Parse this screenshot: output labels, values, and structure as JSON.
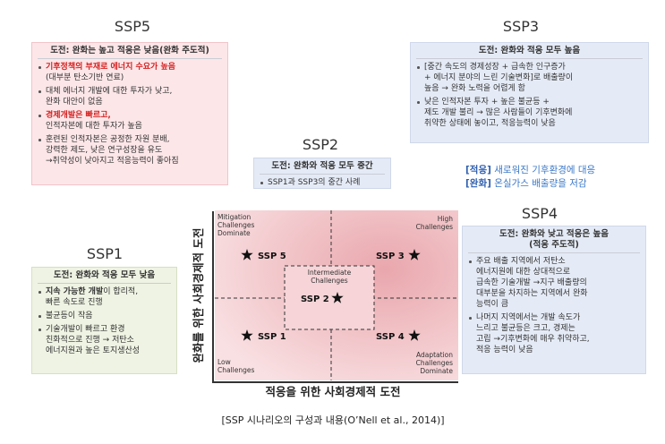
{
  "boxes": [
    {
      "title": "SSP5",
      "header": [
        "도전: 완화는 높고 적응은 낮음(완화 주도적)"
      ],
      "bullets": [
        [
          [
            {
              "text": "기후정책의 부재로 에너지 수요가 높음",
              "emphasis": "red"
            }
          ],
          [
            {
              "text": "(대부분 탄소기반 연료)"
            }
          ]
        ],
        [
          [
            {
              "text": "대체 에너지 개발에 대한 투자가 낮고,"
            }
          ],
          [
            {
              "text": "완화 대안이 없음"
            }
          ]
        ],
        [
          [
            {
              "text": "경제개발은 빠르고,",
              "emphasis": "red"
            }
          ],
          [
            {
              "text": "인적자본에 대한 투자가 높음"
            }
          ]
        ],
        [
          [
            {
              "text": "훈련된 인적자본은 공정한 자원 분배,"
            }
          ],
          [
            {
              "text": "강력한 제도, 낮은 연구성장을 유도"
            }
          ],
          [
            {
              "text": "→취약성이 낮아지고 적응능력이 좋아짐"
            }
          ]
        ]
      ]
    },
    {
      "title": "SSP3",
      "header": [
        "도전: 완화와 적응 모두 높음"
      ],
      "bullets": [
        [
          [
            {
              "text": "[중간 속도의 경제성장 + 급속한 인구증가"
            }
          ],
          [
            {
              "text": "+ 에너지 분야의 느린 기술변화]로 배출량이"
            }
          ],
          [
            {
              "text": "높음 → 완화 노력을 어렵게 함"
            }
          ]
        ],
        [
          [
            {
              "text": "낮은 인적자본 투자 + 높은 불균등 +"
            }
          ],
          [
            {
              "text": "제도 개발 불리 → 많은 사람들이 기후변화에"
            }
          ],
          [
            {
              "text": "취약한 상태에 놓이고, 적응능력이 낮음"
            }
          ]
        ]
      ]
    },
    {
      "title": "SSP2",
      "header": [
        "도전: 완화와 적응 모두 중간"
      ],
      "bullets": [
        [
          [
            {
              "text": "SSP1과  SSP3의 중간 사례"
            }
          ]
        ]
      ]
    },
    {
      "title": "SSP4",
      "header": [
        "도전: 완화와 낮고 적응은 높음",
        "(적응 주도적)"
      ],
      "bullets": [
        [
          [
            {
              "text": "주요 배출 지역에서 저탄소"
            }
          ],
          [
            {
              "text": "에너지원에 대한 상대적으로"
            }
          ],
          [
            {
              "text": "급속한 기술개발 →지구 배출량의"
            }
          ],
          [
            {
              "text": "대부분을 차지하는 지역에서 완화"
            }
          ],
          [
            {
              "text": "능력이 큼"
            }
          ]
        ],
        [
          [
            {
              "text": "나머지 지역에서는 개발 속도가"
            }
          ],
          [
            {
              "text": "느리고 불균등은 크고, 경제는"
            }
          ],
          [
            {
              "text": "고립 →기후변화에 매우 취약하고,"
            }
          ],
          [
            {
              "text": "적응 능력이 낮음"
            }
          ]
        ]
      ]
    },
    {
      "title": "SSP1",
      "header": [
        "도전: 완화와 적응 모두 낮음"
      ],
      "bullets": [
        [
          [
            {
              "text": "지속 가능한 개발",
              "emphasis": "bold"
            },
            {
              "text": "이 합리적,"
            }
          ],
          [
            {
              "text": "빠른 속도로 진행"
            }
          ]
        ],
        [
          [
            {
              "text": "불균등이 작음"
            }
          ]
        ],
        [
          [
            {
              "text": "기술개발이 빠르고 환경"
            }
          ],
          [
            {
              "text": "친화적으로 진행 → 저탄소"
            }
          ],
          [
            {
              "text": "에너지원과 높은 토지생산성"
            }
          ]
        ]
      ]
    }
  ],
  "legend": [
    {
      "tag": "[적응]",
      "text": "새로워진 기후환경에 대응"
    },
    {
      "tag": "[완화]",
      "text": "온실가스 배출량을 저감"
    }
  ],
  "chart": {
    "y_axis_label": "완화를 위한 사회경제적 도전",
    "x_axis_label": "적응을 위한 사회경제적 도전",
    "corners": {
      "top_left": [
        "Mitigation",
        "Challenges",
        "Dominate"
      ],
      "top_right": [
        "High",
        "Challenges"
      ],
      "bottom_left": [
        "Low",
        "Challenges"
      ],
      "bottom_right": [
        "Adaptation",
        "Challenges",
        "Dominate"
      ]
    },
    "center": [
      "Intermediate",
      "Challenges"
    ],
    "markers": [
      "SSP 5",
      "SSP 3",
      "SSP 2",
      "SSP 1",
      "SSP 4"
    ]
  },
  "caption": "[SSP 시나리오의 구성과 내용(O’Nell et al., 2014)]"
}
